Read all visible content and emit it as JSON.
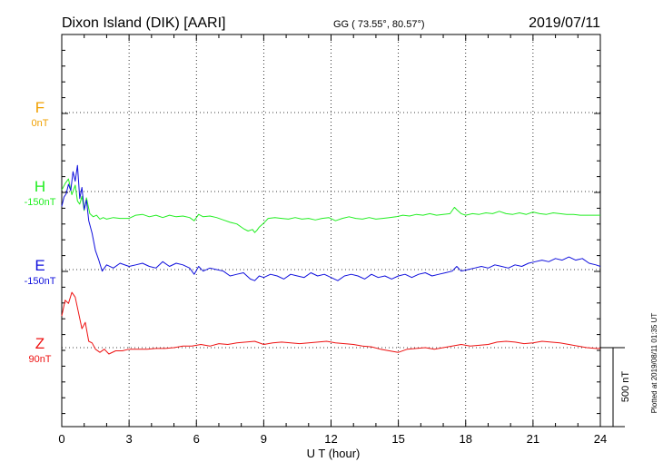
{
  "header": {
    "station": "Dixon Island (DIK)  [AARI]",
    "coords": "GG ( 73.55°,  80.57°)",
    "date": "2019/07/11"
  },
  "side_note": "Plotted at 2019/08/11 01:35 UT",
  "chart_data": {
    "type": "line",
    "title": "Dixon Island (DIK)  [AARI]",
    "xlabel": "U T (hour)",
    "xlim": [
      0,
      24
    ],
    "xticks": [
      "0",
      "3",
      "6",
      "9",
      "12",
      "15",
      "18",
      "21",
      "24"
    ],
    "grid": true,
    "scale_bar": {
      "label": "500 nT",
      "value": 500
    },
    "channels": [
      {
        "name": "F",
        "baseline_label": "0nT",
        "color": "#f0a000",
        "values": []
      },
      {
        "name": "H",
        "baseline_label": "-150nT",
        "color": "#22ee22",
        "x": [
          0,
          0.15,
          0.3,
          0.45,
          0.6,
          0.7,
          0.8,
          0.9,
          1.0,
          1.1,
          1.25,
          1.4,
          1.55,
          1.7,
          1.85,
          2.0,
          2.3,
          2.6,
          3.0,
          3.3,
          3.6,
          3.9,
          4.2,
          4.5,
          4.8,
          5.1,
          5.4,
          5.7,
          5.9,
          6.1,
          6.3,
          6.6,
          6.9,
          7.2,
          7.5,
          7.8,
          8.1,
          8.3,
          8.5,
          8.6,
          8.7,
          8.8,
          9.0,
          9.2,
          9.5,
          9.8,
          10.1,
          10.4,
          10.7,
          11.0,
          11.3,
          11.6,
          11.9,
          12.2,
          12.5,
          12.8,
          13.1,
          13.4,
          13.7,
          14.0,
          14.3,
          14.6,
          14.9,
          15.2,
          15.5,
          15.8,
          16.1,
          16.4,
          16.7,
          17.0,
          17.3,
          17.5,
          17.6,
          17.8,
          18.0,
          18.3,
          18.6,
          18.9,
          19.2,
          19.5,
          19.8,
          20.1,
          20.4,
          20.7,
          21.0,
          21.3,
          21.6,
          21.9,
          22.2,
          22.5,
          22.8,
          23.1,
          23.4,
          23.7,
          24.0
        ],
        "values": [
          10,
          50,
          80,
          -20,
          40,
          -60,
          -80,
          -30,
          -120,
          -40,
          -140,
          -160,
          -150,
          -175,
          -165,
          -175,
          -165,
          -170,
          -170,
          -150,
          -145,
          -160,
          -150,
          -165,
          -150,
          -160,
          -155,
          -165,
          -185,
          -145,
          -160,
          -155,
          -165,
          -180,
          -195,
          -205,
          -235,
          -250,
          -240,
          -260,
          -245,
          -225,
          -200,
          -170,
          -165,
          -170,
          -175,
          -165,
          -175,
          -170,
          -180,
          -170,
          -165,
          -185,
          -170,
          -160,
          -170,
          -175,
          -165,
          -175,
          -170,
          -165,
          -160,
          -150,
          -155,
          -145,
          -150,
          -140,
          -150,
          -145,
          -140,
          -100,
          -115,
          -140,
          -150,
          -140,
          -145,
          -135,
          -140,
          -125,
          -140,
          -145,
          -135,
          -145,
          -130,
          -140,
          -145,
          -135,
          -140,
          -145,
          -145,
          -150,
          -150,
          -150,
          -150
        ]
      },
      {
        "name": "E",
        "baseline_label": "-150nT",
        "color": "#1010dd",
        "x": [
          0,
          0.1,
          0.2,
          0.3,
          0.4,
          0.5,
          0.6,
          0.7,
          0.8,
          0.9,
          1.0,
          1.1,
          1.2,
          1.35,
          1.5,
          1.65,
          1.8,
          2.0,
          2.3,
          2.6,
          3.0,
          3.3,
          3.6,
          3.9,
          4.2,
          4.5,
          4.8,
          5.1,
          5.4,
          5.7,
          5.9,
          6.1,
          6.3,
          6.6,
          6.9,
          7.2,
          7.5,
          7.8,
          8.1,
          8.4,
          8.6,
          8.8,
          9.0,
          9.3,
          9.6,
          9.9,
          10.2,
          10.5,
          10.8,
          11.1,
          11.4,
          11.7,
          12.0,
          12.3,
          12.6,
          12.9,
          13.2,
          13.5,
          13.8,
          14.1,
          14.4,
          14.7,
          15.0,
          15.3,
          15.6,
          15.9,
          16.2,
          16.5,
          16.8,
          17.1,
          17.4,
          17.6,
          17.8,
          18.1,
          18.4,
          18.7,
          19.0,
          19.3,
          19.6,
          19.9,
          20.2,
          20.5,
          20.8,
          21.1,
          21.4,
          21.7,
          22.0,
          22.3,
          22.6,
          22.9,
          23.2,
          23.5,
          23.8,
          24.0
        ],
        "values": [
          400,
          460,
          480,
          540,
          500,
          620,
          560,
          660,
          450,
          520,
          380,
          440,
          310,
          230,
          120,
          60,
          -10,
          30,
          10,
          40,
          20,
          30,
          40,
          20,
          10,
          50,
          20,
          40,
          30,
          10,
          -30,
          20,
          -10,
          10,
          0,
          -10,
          -40,
          -30,
          -20,
          -60,
          -70,
          -40,
          -50,
          -30,
          -40,
          -60,
          -30,
          -40,
          -50,
          -20,
          -40,
          -30,
          -50,
          -70,
          -40,
          -30,
          -40,
          -60,
          -30,
          -50,
          -40,
          -60,
          -40,
          -30,
          -50,
          -30,
          -20,
          -40,
          -30,
          -20,
          -10,
          20,
          -10,
          0,
          10,
          20,
          10,
          30,
          20,
          10,
          30,
          20,
          40,
          50,
          60,
          50,
          70,
          60,
          80,
          60,
          70,
          40,
          30,
          20
        ]
      },
      {
        "name": "Z",
        "baseline_label": "90nT",
        "color": "#ee1111",
        "x": [
          0,
          0.15,
          0.3,
          0.45,
          0.6,
          0.75,
          0.9,
          1.05,
          1.2,
          1.35,
          1.5,
          1.7,
          1.9,
          2.1,
          2.4,
          2.7,
          3.0,
          3.4,
          3.8,
          4.2,
          4.6,
          5.0,
          5.4,
          5.8,
          6.2,
          6.6,
          7.0,
          7.4,
          7.8,
          8.2,
          8.6,
          9.0,
          9.4,
          9.8,
          10.2,
          10.6,
          11.0,
          11.4,
          11.8,
          12.2,
          12.6,
          13.0,
          13.4,
          13.8,
          14.2,
          14.6,
          15.0,
          15.4,
          15.8,
          16.2,
          16.6,
          17.0,
          17.4,
          17.8,
          18.2,
          18.6,
          19.0,
          19.4,
          19.8,
          20.2,
          20.6,
          21.0,
          21.4,
          21.8,
          22.2,
          22.6,
          23.0,
          23.4,
          23.8,
          24.0
        ],
        "values": [
          200,
          300,
          280,
          350,
          320,
          220,
          120,
          160,
          40,
          30,
          -10,
          -30,
          -10,
          -40,
          -20,
          -20,
          -10,
          -10,
          -10,
          -5,
          -5,
          0,
          10,
          10,
          20,
          10,
          25,
          20,
          30,
          35,
          40,
          20,
          30,
          35,
          30,
          25,
          30,
          35,
          40,
          30,
          25,
          20,
          10,
          5,
          -10,
          -20,
          -30,
          -10,
          -5,
          0,
          -10,
          0,
          10,
          20,
          10,
          15,
          20,
          35,
          40,
          35,
          25,
          30,
          40,
          35,
          30,
          20,
          10,
          0,
          -5,
          -5
        ]
      }
    ]
  }
}
